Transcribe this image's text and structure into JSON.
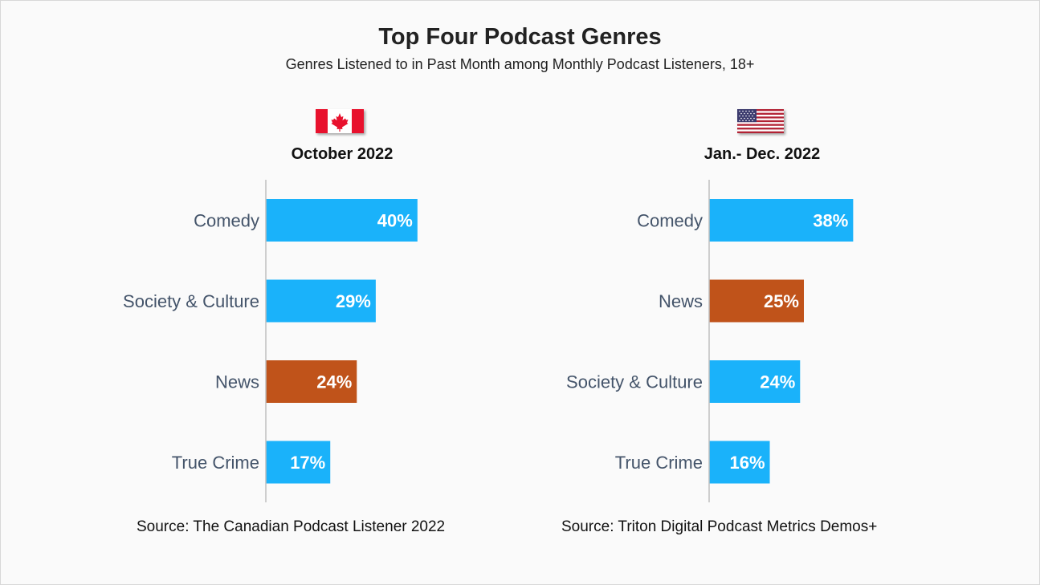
{
  "title": "Top Four Podcast Genres",
  "subtitle": "Genres Listened to in Past Month among Monthly Podcast Listeners, 18+",
  "colors": {
    "default_bar": "#1ab2fa",
    "highlight_bar": "#c0531a",
    "axis": "#bfbfbf"
  },
  "chart_data": [
    {
      "type": "bar",
      "orientation": "horizontal",
      "flag_icon": "canada-flag-icon",
      "period": "October 2022",
      "source": "Source: The Canadian Podcast Listener 2022",
      "categories": [
        "Comedy",
        "Society & Culture",
        "News",
        "True Crime"
      ],
      "values": [
        40,
        29,
        24,
        17
      ],
      "value_labels": [
        "40%",
        "29%",
        "24%",
        "17%"
      ],
      "highlight": [
        false,
        false,
        true,
        false
      ],
      "xlim": [
        0,
        100
      ],
      "grid": false
    },
    {
      "type": "bar",
      "orientation": "horizontal",
      "flag_icon": "usa-flag-icon",
      "period": "Jan.- Dec. 2022",
      "source": "Source: Triton Digital Podcast Metrics Demos+",
      "categories": [
        "Comedy",
        "News",
        "Society & Culture",
        "True Crime"
      ],
      "values": [
        38,
        25,
        24,
        16
      ],
      "value_labels": [
        "38%",
        "25%",
        "24%",
        "16%"
      ],
      "highlight": [
        false,
        true,
        false,
        false
      ],
      "xlim": [
        0,
        100
      ],
      "grid": false
    }
  ]
}
